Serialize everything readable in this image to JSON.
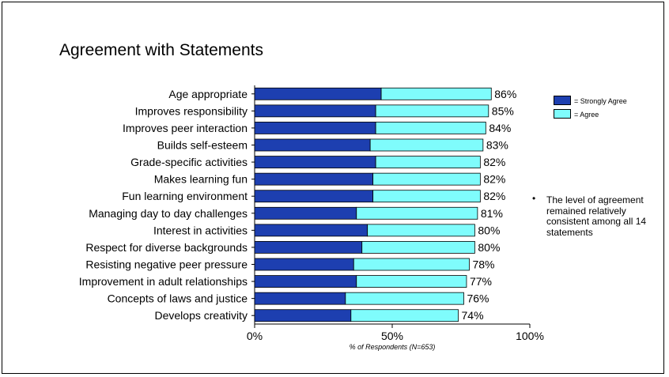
{
  "chart_data": {
    "type": "bar",
    "orientation": "horizontal",
    "stacked": true,
    "title": "Agreement with Statements",
    "xlabel": "% of Respondents (N=653)",
    "ylabel": "",
    "xlim": [
      0,
      100
    ],
    "x_ticks": [
      "0%",
      "50%",
      "100%"
    ],
    "categories": [
      "Age appropriate",
      "Improves responsibility",
      "Improves peer interaction",
      "Builds self-esteem",
      "Grade-specific activities",
      "Makes learning fun",
      "Fun learning environment",
      "Managing day to day challenges",
      "Interest in activities",
      "Respect for diverse backgrounds",
      "Resisting negative peer pressure",
      "Improvement in adult relationships",
      "Concepts of laws and justice",
      "Develops creativity"
    ],
    "series": [
      {
        "name": "= Strongly Agree",
        "color": "#1d3fb0",
        "values": [
          46,
          44,
          44,
          42,
          44,
          43,
          43,
          37,
          41,
          39,
          36,
          37,
          33,
          35
        ]
      },
      {
        "name": "= Agree",
        "color": "#7ffcfc",
        "values": [
          40,
          41,
          40,
          41,
          38,
          39,
          39,
          44,
          39,
          41,
          42,
          40,
          43,
          39
        ]
      }
    ],
    "totals": [
      86,
      85,
      84,
      83,
      82,
      82,
      82,
      81,
      80,
      80,
      78,
      77,
      76,
      74
    ],
    "total_labels": [
      "86%",
      "85%",
      "84%",
      "83%",
      "82%",
      "82%",
      "82%",
      "81%",
      "80%",
      "80%",
      "78%",
      "77%",
      "76%",
      "74%"
    ],
    "legend_position": "top-right",
    "grid": false
  },
  "note": {
    "bullet": "•",
    "text": "The level of agreement remained relatively consistent among all 14 statements"
  }
}
